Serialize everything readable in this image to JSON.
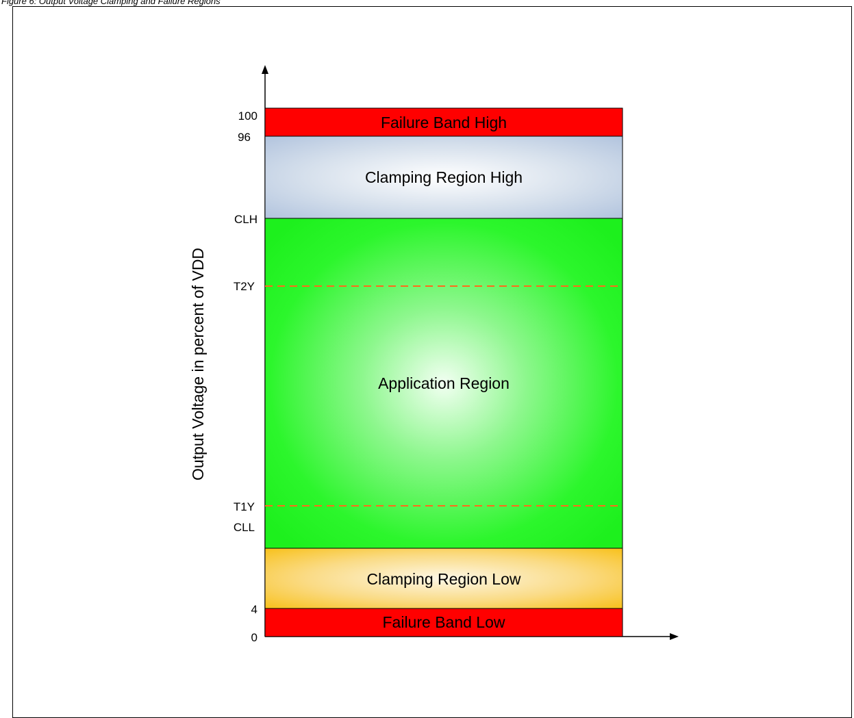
{
  "caption": "Figure 6: Output Voltage Clamping and Failure Regions",
  "y_axis_title": "Output Voltage in percent of VDD",
  "ticks": {
    "v100": "100",
    "v96": "96",
    "clh": "CLH",
    "t2y": "T2Y",
    "t1y": "T1Y",
    "cll": "CLL",
    "v4": "4",
    "v0": "0"
  },
  "regions": {
    "failure_high": "Failure Band High",
    "clamping_high": "Clamping Region High",
    "application": "Application Region",
    "clamping_low": "Clamping Region Low",
    "failure_low": "Failure Band Low"
  },
  "colors": {
    "failure": "#ff0000",
    "clamping_high": "#b4c6e0",
    "application": "#22ff22",
    "clamping_low": "#fac21a",
    "threshold_line": "#ff6a1a"
  }
}
